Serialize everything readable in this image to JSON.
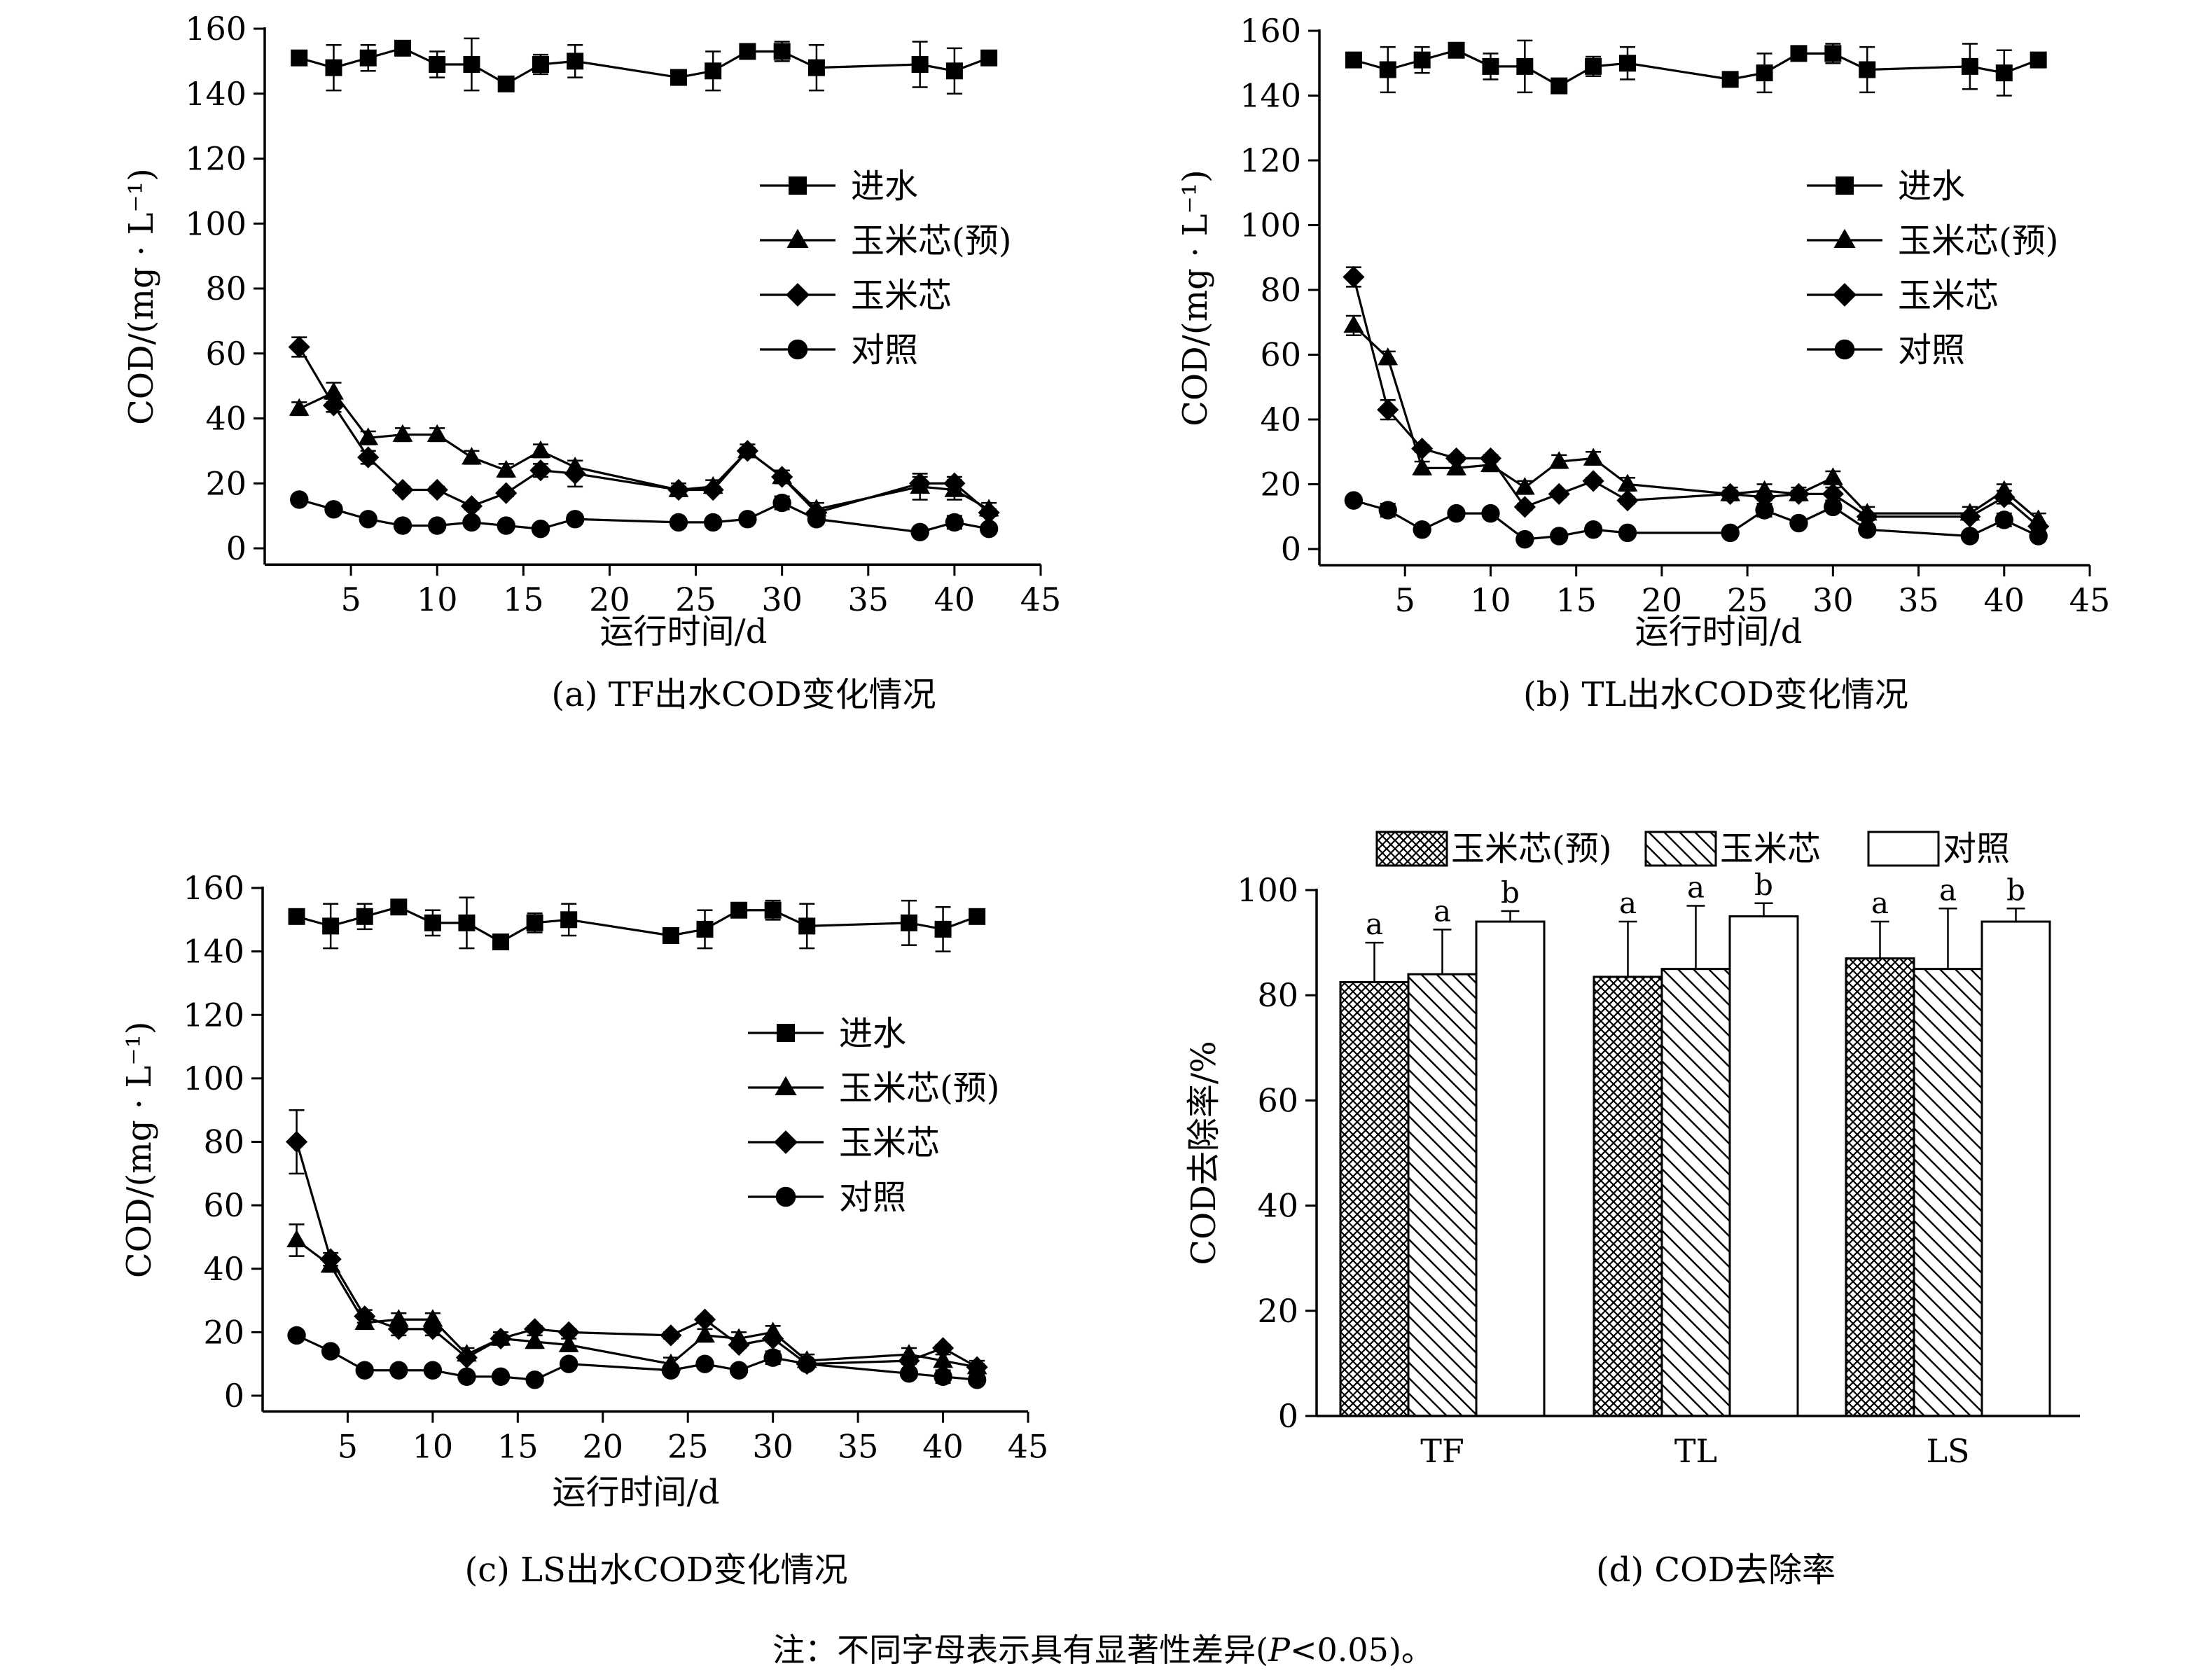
{
  "note": {
    "prefix": "注：不同字母表示具有显著性差异(",
    "italic": "P",
    "suffix": "<0.05)。"
  },
  "colors": {
    "ink": "#000000",
    "background": "#ffffff"
  },
  "chart_data": [
    {
      "type": "line",
      "caption": "(a) TF出水COD变化情况",
      "xlabel": "运行时间/d",
      "ylabel": "COD/(mg · L⁻¹)",
      "xlim": [
        0,
        45
      ],
      "ylim": [
        -5,
        160
      ],
      "xticks": [
        5,
        10,
        15,
        20,
        25,
        30,
        35,
        40,
        45
      ],
      "yticks": [
        0,
        20,
        40,
        60,
        80,
        100,
        120,
        140,
        160
      ],
      "legend_position": "upper-right",
      "error_bars": true,
      "series": [
        {
          "name": "进水",
          "marker": "square",
          "x": [
            2,
            4,
            6,
            8,
            10,
            12,
            14,
            16,
            18,
            24,
            26,
            28,
            30,
            32,
            38,
            40,
            42
          ],
          "y": [
            151,
            148,
            151,
            154,
            149,
            149,
            143,
            149,
            150,
            145,
            147,
            153,
            153,
            148,
            149,
            147,
            151
          ],
          "err": [
            2,
            7,
            4,
            1,
            4,
            8,
            1,
            3,
            5,
            2,
            6,
            1,
            3,
            7,
            7,
            7,
            2
          ]
        },
        {
          "name": "玉米芯(预)",
          "marker": "triangle",
          "x": [
            2,
            4,
            6,
            8,
            10,
            12,
            14,
            16,
            18,
            24,
            26,
            28,
            30,
            32,
            38,
            40,
            42
          ],
          "y": [
            43,
            48,
            34,
            35,
            35,
            28,
            24,
            30,
            25,
            18,
            19,
            30,
            22,
            12,
            19,
            18,
            12
          ],
          "err": [
            2,
            3,
            2,
            2,
            2,
            2,
            2,
            2,
            2,
            2,
            2,
            2,
            2,
            2,
            4,
            3,
            2
          ]
        },
        {
          "name": "玉米芯",
          "marker": "diamond",
          "x": [
            2,
            4,
            6,
            8,
            10,
            12,
            14,
            16,
            18,
            24,
            26,
            28,
            30,
            32,
            38,
            40,
            42
          ],
          "y": [
            62,
            44,
            28,
            18,
            18,
            13,
            17,
            24,
            23,
            18,
            18,
            30,
            22,
            11,
            20,
            20,
            11
          ],
          "err": [
            3,
            2,
            2,
            1,
            1,
            1,
            1,
            2,
            4,
            1,
            1,
            1,
            2,
            1,
            2,
            2,
            1
          ]
        },
        {
          "name": "对照",
          "marker": "circle",
          "x": [
            2,
            4,
            6,
            8,
            10,
            12,
            14,
            16,
            18,
            24,
            26,
            28,
            30,
            32,
            38,
            40,
            42
          ],
          "y": [
            15,
            12,
            9,
            7,
            7,
            8,
            7,
            6,
            9,
            8,
            8,
            9,
            14,
            9,
            5,
            8,
            6
          ],
          "err": [
            1,
            1,
            1,
            1,
            1,
            1,
            1,
            1,
            1,
            1,
            1,
            1,
            2,
            1,
            1,
            2,
            1
          ]
        }
      ]
    },
    {
      "type": "line",
      "caption": "(b) TL出水COD变化情况",
      "xlabel": "运行时间/d",
      "ylabel": "COD/(mg · L⁻¹)",
      "xlim": [
        0,
        45
      ],
      "ylim": [
        -5,
        160
      ],
      "xticks": [
        5,
        10,
        15,
        20,
        25,
        30,
        35,
        40,
        45
      ],
      "yticks": [
        0,
        20,
        40,
        60,
        80,
        100,
        120,
        140,
        160
      ],
      "legend_position": "upper-right",
      "error_bars": true,
      "series": [
        {
          "name": "进水",
          "marker": "square",
          "x": [
            2,
            4,
            6,
            8,
            10,
            12,
            14,
            16,
            18,
            24,
            26,
            28,
            30,
            32,
            38,
            40,
            42
          ],
          "y": [
            151,
            148,
            151,
            154,
            149,
            149,
            143,
            149,
            150,
            145,
            147,
            153,
            153,
            148,
            149,
            147,
            151
          ],
          "err": [
            2,
            7,
            4,
            1,
            4,
            8,
            1,
            3,
            5,
            2,
            6,
            1,
            3,
            7,
            7,
            7,
            2
          ]
        },
        {
          "name": "玉米芯(预)",
          "marker": "triangle",
          "x": [
            2,
            4,
            6,
            8,
            10,
            12,
            14,
            16,
            18,
            24,
            26,
            28,
            30,
            32,
            38,
            40,
            42
          ],
          "y": [
            69,
            59,
            25,
            25,
            26,
            19,
            27,
            28,
            20,
            17,
            18,
            17,
            22,
            11,
            11,
            18,
            9
          ],
          "err": [
            3,
            2,
            2,
            2,
            2,
            2,
            2,
            2,
            2,
            2,
            2,
            2,
            2,
            2,
            2,
            2,
            2
          ]
        },
        {
          "name": "玉米芯",
          "marker": "diamond",
          "x": [
            2,
            4,
            6,
            8,
            10,
            12,
            14,
            16,
            18,
            24,
            26,
            28,
            30,
            32,
            38,
            40,
            42
          ],
          "y": [
            84,
            43,
            31,
            28,
            28,
            13,
            17,
            21,
            15,
            17,
            16,
            17,
            17,
            10,
            10,
            16,
            7
          ],
          "err": [
            3,
            3,
            1,
            1,
            1,
            1,
            1,
            1,
            1,
            1,
            1,
            1,
            2,
            1,
            1,
            2,
            1
          ]
        },
        {
          "name": "对照",
          "marker": "circle",
          "x": [
            2,
            4,
            6,
            8,
            10,
            12,
            14,
            16,
            18,
            24,
            26,
            28,
            30,
            32,
            38,
            40,
            42
          ],
          "y": [
            15,
            12,
            6,
            11,
            11,
            3,
            4,
            6,
            5,
            5,
            12,
            8,
            13,
            6,
            4,
            9,
            4
          ],
          "err": [
            1,
            2,
            1,
            1,
            1,
            1,
            1,
            1,
            1,
            1,
            2,
            1,
            1,
            1,
            1,
            2,
            1
          ]
        }
      ]
    },
    {
      "type": "line",
      "caption": "(c) LS出水COD变化情况",
      "xlabel": "运行时间/d",
      "ylabel": "COD/(mg · L⁻¹)",
      "xlim": [
        0,
        45
      ],
      "ylim": [
        -5,
        160
      ],
      "xticks": [
        5,
        10,
        15,
        20,
        25,
        30,
        35,
        40,
        45
      ],
      "yticks": [
        0,
        20,
        40,
        60,
        80,
        100,
        120,
        140,
        160
      ],
      "legend_position": "upper-right",
      "error_bars": true,
      "series": [
        {
          "name": "进水",
          "marker": "square",
          "x": [
            2,
            4,
            6,
            8,
            10,
            12,
            14,
            16,
            18,
            24,
            26,
            28,
            30,
            32,
            38,
            40,
            42
          ],
          "y": [
            151,
            148,
            151,
            154,
            149,
            149,
            143,
            149,
            150,
            145,
            147,
            153,
            153,
            148,
            149,
            147,
            151
          ],
          "err": [
            2,
            7,
            4,
            1,
            4,
            8,
            1,
            3,
            5,
            2,
            6,
            1,
            3,
            7,
            7,
            7,
            2
          ]
        },
        {
          "name": "玉米芯(预)",
          "marker": "triangle",
          "x": [
            2,
            4,
            6,
            8,
            10,
            12,
            14,
            16,
            18,
            24,
            26,
            28,
            30,
            32,
            38,
            40,
            42
          ],
          "y": [
            49,
            41,
            23,
            24,
            24,
            13,
            18,
            17,
            16,
            10,
            19,
            18,
            20,
            11,
            13,
            11,
            9
          ],
          "err": [
            5,
            2,
            2,
            2,
            2,
            2,
            2,
            2,
            2,
            2,
            2,
            2,
            2,
            2,
            2,
            2,
            2
          ]
        },
        {
          "name": "玉米芯",
          "marker": "diamond",
          "x": [
            2,
            4,
            6,
            8,
            10,
            12,
            14,
            16,
            18,
            24,
            26,
            28,
            30,
            32,
            38,
            40,
            42
          ],
          "y": [
            80,
            43,
            25,
            21,
            21,
            12,
            18,
            21,
            20,
            19,
            24,
            16,
            18,
            10,
            11,
            15,
            9
          ],
          "err": [
            10,
            2,
            2,
            2,
            2,
            1,
            1,
            1,
            1,
            1,
            1,
            1,
            1,
            1,
            1,
            1,
            1
          ]
        },
        {
          "name": "对照",
          "marker": "circle",
          "x": [
            2,
            4,
            6,
            8,
            10,
            12,
            14,
            16,
            18,
            24,
            26,
            28,
            30,
            32,
            38,
            40,
            42
          ],
          "y": [
            19,
            14,
            8,
            8,
            8,
            6,
            6,
            5,
            10,
            8,
            10,
            8,
            12,
            10,
            7,
            6,
            5
          ],
          "err": [
            1,
            1,
            1,
            1,
            1,
            1,
            1,
            1,
            1,
            1,
            1,
            1,
            2,
            1,
            1,
            2,
            1
          ]
        }
      ]
    },
    {
      "type": "bar",
      "caption": "(d) COD去除率",
      "xlabel": "",
      "ylabel": "COD去除率/%",
      "ylim": [
        0,
        100
      ],
      "yticks": [
        0,
        20,
        40,
        60,
        80,
        100
      ],
      "legend_position": "top",
      "error_bars": true,
      "categories": [
        "TF",
        "TL",
        "LS"
      ],
      "series": [
        {
          "name": "玉米芯(预)",
          "pattern": "crosshatch",
          "values": [
            82.5,
            83.5,
            87.0
          ],
          "err": [
            7.5,
            10.5,
            7.0
          ],
          "letters": [
            "a",
            "a",
            "a"
          ]
        },
        {
          "name": "玉米芯",
          "pattern": "diagonal",
          "values": [
            84.0,
            85.0,
            85.0
          ],
          "err": [
            8.5,
            12.0,
            11.5
          ],
          "letters": [
            "a",
            "a",
            "a"
          ]
        },
        {
          "name": "对照",
          "pattern": "empty",
          "values": [
            94.0,
            95.0,
            94.0
          ],
          "err": [
            2.0,
            2.5,
            2.5
          ],
          "letters": [
            "b",
            "b",
            "b"
          ]
        }
      ]
    }
  ]
}
